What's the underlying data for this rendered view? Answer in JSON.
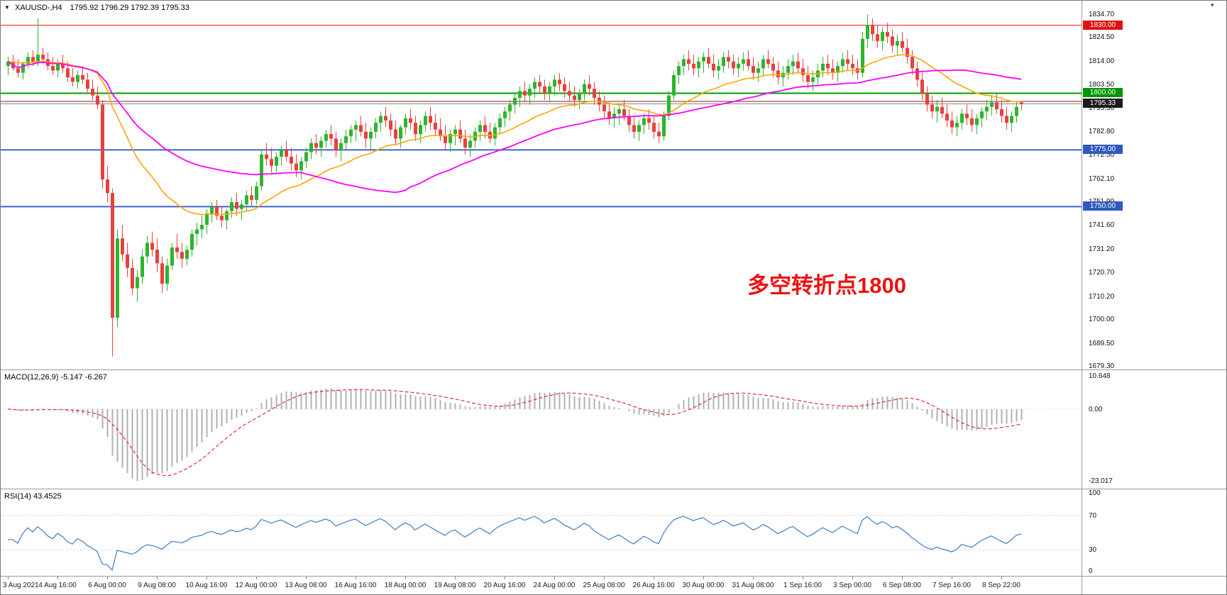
{
  "icons": {
    "symbol_marker": "▼",
    "shift_marker": "▾"
  },
  "chart_data": {
    "type": "candlestick",
    "symbol_timeframe": "XAUUSD-,H4",
    "ohlc_readout": "1795.92 1796.29 1792.39 1795.33",
    "ohlc_current": {
      "open": 1795.92,
      "high": 1796.29,
      "low": 1792.39,
      "close": 1795.33
    },
    "last_price": 1795.33,
    "last_price_label": "1795.33",
    "ylim": [
      1678.2,
      1840.8
    ],
    "y_tick_labels": [
      "1834.70",
      "1824.50",
      "1814.00",
      "1803.50",
      "1793.30",
      "1782.80",
      "1772.50",
      "1762.10",
      "1751.90",
      "1741.60",
      "1731.20",
      "1720.70",
      "1710.20",
      "1700.00",
      "1689.50",
      "1679.30"
    ],
    "x_tick_labels": [
      "3 Aug 2021",
      "4 Aug 16:00",
      "6 Aug 00:00",
      "9 Aug 08:00",
      "10 Aug 16:00",
      "12 Aug 00:00",
      "13 Aug 08:00",
      "16 Aug 16:00",
      "18 Aug 00:00",
      "19 Aug 08:00",
      "20 Aug 16:00",
      "24 Aug 00:00",
      "25 Aug 08:00",
      "26 Aug 16:00",
      "30 Aug 00:00",
      "31 Aug 08:00",
      "1 Sep 16:00",
      "3 Sep 00:00",
      "6 Sep 08:00",
      "7 Sep 16:00",
      "8 Sep 22:00"
    ],
    "bars_per_x_tick": 10,
    "colors": {
      "bull": "#2db52d",
      "bear": "#e84040",
      "ma_fast": "#ffa500",
      "ma_slow": "#ff00ff",
      "macd_hist": "#b0b0b0",
      "macd_signal": "#e03030",
      "rsi_line": "#3f7cc4",
      "current_price_line": "#808080"
    },
    "horizontal_lines": [
      {
        "value": 1830.0,
        "label": "1830.00",
        "color": "#f42525",
        "width": 1,
        "badge_bg": "#e31212"
      },
      {
        "value": 1800.0,
        "label": "1800.00",
        "color": "#00a000",
        "width": 2,
        "badge_bg": "#009600"
      },
      {
        "value": 1796.4,
        "label": "",
        "color": "#8b1a1a",
        "width": 1,
        "badge_bg": null
      },
      {
        "value": 1775.0,
        "label": "1775.00",
        "color": "#3a66c9",
        "width": 2,
        "badge_bg": "#2f58c0"
      },
      {
        "value": 1750.0,
        "label": "1750.00",
        "color": "#3a66c9",
        "width": 2,
        "badge_bg": "#2f58c0"
      }
    ],
    "moving_averages": [
      {
        "name": "fast",
        "method": "ema",
        "period": 26,
        "color": "#ffa500"
      },
      {
        "name": "slow",
        "method": "sma",
        "period": 60,
        "color": "#ff00ff"
      }
    ],
    "indicators": {
      "macd": {
        "label": "MACD(12,26,9) -5.147 -6.267",
        "params": [
          12,
          26,
          9
        ],
        "values": [
          -5.147,
          -6.267
        ],
        "y_tick_labels": [
          "10.648",
          "0.00",
          "-23.017"
        ],
        "y_ticks": [
          10.648,
          0,
          -23.017
        ],
        "range": [
          -25.5,
          12.5
        ],
        "scale_to_min": -23.017
      },
      "rsi": {
        "label": "RSI(14) 43.4525",
        "period": 14,
        "value": 43.4525,
        "y_tick_labels": [
          "100",
          "70",
          "30",
          "0"
        ],
        "y_ticks": [
          100,
          70,
          30,
          0
        ],
        "levels": [
          30,
          70
        ]
      }
    },
    "annotation": {
      "text": "多空转折点1800",
      "color": "#ee1111"
    },
    "ohlc": [
      [
        1812,
        1816,
        1808,
        1814
      ],
      [
        1814,
        1817,
        1810,
        1811
      ],
      [
        1811,
        1815,
        1807,
        1809
      ],
      [
        1809,
        1814,
        1806,
        1813
      ],
      [
        1813,
        1818,
        1811,
        1816
      ],
      [
        1816,
        1819,
        1812,
        1814
      ],
      [
        1814,
        1833,
        1812,
        1817
      ],
      [
        1817,
        1820,
        1813,
        1815
      ],
      [
        1815,
        1818,
        1810,
        1812
      ],
      [
        1812,
        1816,
        1808,
        1810
      ],
      [
        1810,
        1815,
        1807,
        1813
      ],
      [
        1813,
        1817,
        1809,
        1811
      ],
      [
        1811,
        1814,
        1805,
        1807
      ],
      [
        1807,
        1811,
        1803,
        1805
      ],
      [
        1805,
        1810,
        1802,
        1808
      ],
      [
        1808,
        1812,
        1804,
        1806
      ],
      [
        1806,
        1809,
        1800,
        1802
      ],
      [
        1802,
        1806,
        1797,
        1799
      ],
      [
        1799,
        1803,
        1793,
        1795
      ],
      [
        1795,
        1797,
        1758,
        1762
      ],
      [
        1762,
        1768,
        1752,
        1756
      ],
      [
        1756,
        1758,
        1684,
        1701
      ],
      [
        1701,
        1740,
        1697,
        1736
      ],
      [
        1736,
        1742,
        1726,
        1729
      ],
      [
        1729,
        1734,
        1719,
        1723
      ],
      [
        1723,
        1727,
        1711,
        1714
      ],
      [
        1714,
        1722,
        1708,
        1719
      ],
      [
        1719,
        1731,
        1716,
        1728
      ],
      [
        1728,
        1737,
        1725,
        1734
      ],
      [
        1734,
        1739,
        1728,
        1731
      ],
      [
        1731,
        1736,
        1721,
        1725
      ],
      [
        1725,
        1728,
        1712,
        1716
      ],
      [
        1716,
        1727,
        1713,
        1724
      ],
      [
        1724,
        1734,
        1722,
        1732
      ],
      [
        1732,
        1738,
        1727,
        1730
      ],
      [
        1730,
        1734,
        1723,
        1727
      ],
      [
        1727,
        1733,
        1724,
        1731
      ],
      [
        1731,
        1740,
        1728,
        1738
      ],
      [
        1738,
        1743,
        1733,
        1740
      ],
      [
        1740,
        1746,
        1736,
        1742
      ],
      [
        1742,
        1749,
        1738,
        1747
      ],
      [
        1747,
        1752,
        1743,
        1750
      ],
      [
        1750,
        1753,
        1744,
        1746
      ],
      [
        1746,
        1750,
        1741,
        1744
      ],
      [
        1744,
        1749,
        1740,
        1748
      ],
      [
        1748,
        1754,
        1745,
        1752
      ],
      [
        1752,
        1756,
        1746,
        1749
      ],
      [
        1749,
        1753,
        1744,
        1751
      ],
      [
        1751,
        1757,
        1748,
        1755
      ],
      [
        1755,
        1759,
        1750,
        1753
      ],
      [
        1753,
        1761,
        1751,
        1759
      ],
      [
        1759,
        1775,
        1757,
        1773
      ],
      [
        1773,
        1778,
        1768,
        1771
      ],
      [
        1771,
        1776,
        1765,
        1768
      ],
      [
        1768,
        1774,
        1765,
        1772
      ],
      [
        1772,
        1777,
        1768,
        1775
      ],
      [
        1775,
        1779,
        1770,
        1772
      ],
      [
        1772,
        1776,
        1766,
        1769
      ],
      [
        1769,
        1773,
        1763,
        1766
      ],
      [
        1766,
        1772,
        1762,
        1770
      ],
      [
        1770,
        1776,
        1767,
        1774
      ],
      [
        1774,
        1780,
        1771,
        1778
      ],
      [
        1778,
        1782,
        1773,
        1776
      ],
      [
        1776,
        1781,
        1772,
        1779
      ],
      [
        1779,
        1784,
        1776,
        1782
      ],
      [
        1782,
        1786,
        1777,
        1780
      ],
      [
        1780,
        1783,
        1772,
        1775
      ],
      [
        1775,
        1780,
        1770,
        1778
      ],
      [
        1778,
        1784,
        1775,
        1781
      ],
      [
        1781,
        1786,
        1778,
        1784
      ],
      [
        1784,
        1788,
        1779,
        1786
      ],
      [
        1786,
        1790,
        1781,
        1783
      ],
      [
        1783,
        1787,
        1776,
        1780
      ],
      [
        1780,
        1785,
        1775,
        1783
      ],
      [
        1783,
        1789,
        1780,
        1787
      ],
      [
        1787,
        1792,
        1783,
        1790
      ],
      [
        1790,
        1794,
        1785,
        1788
      ],
      [
        1788,
        1791,
        1781,
        1784
      ],
      [
        1784,
        1788,
        1777,
        1780
      ],
      [
        1780,
        1786,
        1776,
        1785
      ],
      [
        1785,
        1791,
        1782,
        1789
      ],
      [
        1789,
        1793,
        1784,
        1787
      ],
      [
        1787,
        1790,
        1779,
        1782
      ],
      [
        1782,
        1788,
        1778,
        1786
      ],
      [
        1786,
        1792,
        1783,
        1790
      ],
      [
        1790,
        1794,
        1784,
        1787
      ],
      [
        1787,
        1791,
        1781,
        1784
      ],
      [
        1784,
        1789,
        1779,
        1781
      ],
      [
        1781,
        1786,
        1775,
        1778
      ],
      [
        1778,
        1784,
        1774,
        1782
      ],
      [
        1782,
        1786,
        1777,
        1784
      ],
      [
        1784,
        1788,
        1778,
        1780
      ],
      [
        1780,
        1784,
        1773,
        1776
      ],
      [
        1776,
        1782,
        1772,
        1779
      ],
      [
        1779,
        1785,
        1776,
        1783
      ],
      [
        1783,
        1788,
        1779,
        1786
      ],
      [
        1786,
        1790,
        1780,
        1783
      ],
      [
        1783,
        1787,
        1778,
        1780
      ],
      [
        1780,
        1787,
        1777,
        1785
      ],
      [
        1785,
        1791,
        1782,
        1789
      ],
      [
        1789,
        1794,
        1785,
        1792
      ],
      [
        1792,
        1797,
        1788,
        1795
      ],
      [
        1795,
        1800,
        1791,
        1798
      ],
      [
        1798,
        1803,
        1794,
        1801
      ],
      [
        1801,
        1805,
        1796,
        1799
      ],
      [
        1799,
        1804,
        1795,
        1802
      ],
      [
        1802,
        1807,
        1798,
        1805
      ],
      [
        1805,
        1808,
        1800,
        1803
      ],
      [
        1803,
        1806,
        1797,
        1800
      ],
      [
        1800,
        1805,
        1796,
        1803
      ],
      [
        1803,
        1808,
        1799,
        1806
      ],
      [
        1806,
        1809,
        1801,
        1804
      ],
      [
        1804,
        1807,
        1798,
        1801
      ],
      [
        1801,
        1805,
        1796,
        1799
      ],
      [
        1799,
        1803,
        1794,
        1797
      ],
      [
        1797,
        1802,
        1793,
        1800
      ],
      [
        1800,
        1806,
        1797,
        1804
      ],
      [
        1804,
        1808,
        1799,
        1802
      ],
      [
        1802,
        1805,
        1795,
        1798
      ],
      [
        1798,
        1801,
        1792,
        1795
      ],
      [
        1795,
        1799,
        1789,
        1792
      ],
      [
        1792,
        1796,
        1786,
        1789
      ],
      [
        1789,
        1794,
        1785,
        1791
      ],
      [
        1791,
        1795,
        1786,
        1793
      ],
      [
        1793,
        1797,
        1788,
        1790
      ],
      [
        1790,
        1793,
        1783,
        1786
      ],
      [
        1786,
        1790,
        1780,
        1783
      ],
      [
        1783,
        1788,
        1779,
        1786
      ],
      [
        1786,
        1791,
        1782,
        1789
      ],
      [
        1789,
        1793,
        1784,
        1787
      ],
      [
        1787,
        1790,
        1780,
        1783
      ],
      [
        1783,
        1787,
        1778,
        1781
      ],
      [
        1781,
        1792,
        1779,
        1790
      ],
      [
        1790,
        1801,
        1788,
        1799
      ],
      [
        1799,
        1810,
        1797,
        1808
      ],
      [
        1808,
        1814,
        1804,
        1812
      ],
      [
        1812,
        1817,
        1808,
        1815
      ],
      [
        1815,
        1819,
        1810,
        1813
      ],
      [
        1813,
        1817,
        1808,
        1811
      ],
      [
        1811,
        1816,
        1807,
        1814
      ],
      [
        1814,
        1818,
        1809,
        1816
      ],
      [
        1816,
        1820,
        1811,
        1813
      ],
      [
        1813,
        1817,
        1807,
        1810
      ],
      [
        1810,
        1815,
        1806,
        1812
      ],
      [
        1812,
        1818,
        1809,
        1816
      ],
      [
        1816,
        1819,
        1811,
        1814
      ],
      [
        1814,
        1817,
        1808,
        1811
      ],
      [
        1811,
        1816,
        1807,
        1813
      ],
      [
        1813,
        1818,
        1810,
        1815
      ],
      [
        1815,
        1819,
        1810,
        1812
      ],
      [
        1812,
        1816,
        1806,
        1809
      ],
      [
        1809,
        1814,
        1805,
        1811
      ],
      [
        1811,
        1817,
        1808,
        1815
      ],
      [
        1815,
        1819,
        1811,
        1813
      ],
      [
        1813,
        1816,
        1807,
        1810
      ],
      [
        1810,
        1814,
        1804,
        1807
      ],
      [
        1807,
        1812,
        1803,
        1809
      ],
      [
        1809,
        1815,
        1806,
        1812
      ],
      [
        1812,
        1817,
        1808,
        1814
      ],
      [
        1814,
        1818,
        1809,
        1811
      ],
      [
        1811,
        1815,
        1805,
        1808
      ],
      [
        1808,
        1812,
        1802,
        1805
      ],
      [
        1805,
        1810,
        1801,
        1807
      ],
      [
        1807,
        1813,
        1804,
        1810
      ],
      [
        1810,
        1816,
        1807,
        1813
      ],
      [
        1813,
        1817,
        1808,
        1811
      ],
      [
        1811,
        1815,
        1806,
        1809
      ],
      [
        1809,
        1814,
        1805,
        1812
      ],
      [
        1812,
        1818,
        1809,
        1815
      ],
      [
        1815,
        1819,
        1810,
        1813
      ],
      [
        1813,
        1817,
        1808,
        1811
      ],
      [
        1811,
        1815,
        1806,
        1809
      ],
      [
        1809,
        1827,
        1807,
        1824
      ],
      [
        1824,
        1834.7,
        1820,
        1830
      ],
      [
        1830,
        1833,
        1823,
        1826
      ],
      [
        1826,
        1830,
        1820,
        1823
      ],
      [
        1823,
        1829,
        1819,
        1827
      ],
      [
        1827,
        1831,
        1822,
        1825
      ],
      [
        1825,
        1828,
        1818,
        1821
      ],
      [
        1821,
        1826,
        1817,
        1823
      ],
      [
        1823,
        1827,
        1818,
        1820
      ],
      [
        1820,
        1824,
        1813,
        1816
      ],
      [
        1816,
        1819,
        1808,
        1811
      ],
      [
        1811,
        1814,
        1803,
        1806
      ],
      [
        1806,
        1809,
        1797,
        1800
      ],
      [
        1800,
        1803,
        1792,
        1795
      ],
      [
        1795,
        1799,
        1789,
        1792
      ],
      [
        1792,
        1797,
        1787,
        1794
      ],
      [
        1794,
        1798,
        1789,
        1791
      ],
      [
        1791,
        1795,
        1785,
        1788
      ],
      [
        1788,
        1792,
        1782,
        1785
      ],
      [
        1785,
        1790,
        1781,
        1787
      ],
      [
        1787,
        1793,
        1784,
        1791
      ],
      [
        1791,
        1795,
        1786,
        1789
      ],
      [
        1789,
        1793,
        1783,
        1786
      ],
      [
        1786,
        1791,
        1782,
        1789
      ],
      [
        1789,
        1794,
        1785,
        1792
      ],
      [
        1792,
        1797,
        1788,
        1794
      ],
      [
        1794,
        1799,
        1790,
        1796
      ],
      [
        1796,
        1800,
        1791,
        1793
      ],
      [
        1793,
        1797,
        1787,
        1790
      ],
      [
        1790,
        1794,
        1784,
        1787
      ],
      [
        1787,
        1792,
        1783,
        1790
      ],
      [
        1790,
        1796,
        1787,
        1794
      ],
      [
        1795.92,
        1796.29,
        1792.39,
        1795.33
      ]
    ]
  }
}
